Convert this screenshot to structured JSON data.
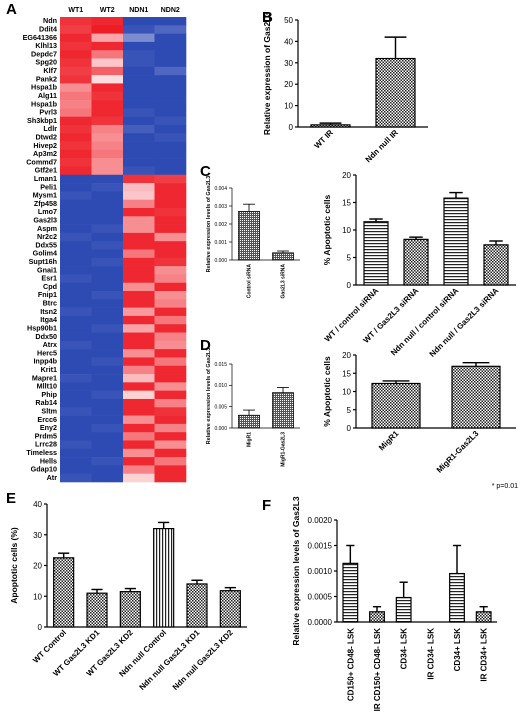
{
  "panels": {
    "A": "A",
    "B": "B",
    "C": "C",
    "D": "D",
    "E": "E",
    "F": "F"
  },
  "chart_data": [
    {
      "panel": "A",
      "type": "heatmap",
      "columns": [
        "WT1",
        "WT2",
        "NDN1",
        "NDN2"
      ],
      "rows": [
        "Ndn",
        "Ddit4",
        "EG641366",
        "Klhl13",
        "Depdc7",
        "Spg20",
        "Klf7",
        "Pank2",
        "Hspa1b",
        "Alg11",
        "Hspa1b",
        "Pvrl3",
        "Sh3kbp1",
        "Ldlr",
        "Dtwd2",
        "Hivep2",
        "Ap3m2",
        "Commd7",
        "Gtf2e1",
        "Lman1",
        "Peli1",
        "Mysm1",
        "Zfp458",
        "Lmo7",
        "Gas2l3",
        "Aspm",
        "Nr2c2",
        "Ddx55",
        "Golim4",
        "Supt16h",
        "Gnai1",
        "Esr1",
        "Cpd",
        "Fnip1",
        "Btrc",
        "Itsn2",
        "Itga4",
        "Hsp90b1",
        "Ddx50",
        "Atrx",
        "Herc5",
        "Inpp4b",
        "Krit1",
        "Mapre1",
        "Mllt10",
        "Phip",
        "Rab14",
        "Sltm",
        "Ercc6",
        "Eny2",
        "Prdm5",
        "Lrrc28",
        "Timeless",
        "Hells",
        "Gdap10",
        "Atr"
      ],
      "values": [
        [
          0.9,
          0.95,
          -0.95,
          -0.95
        ],
        [
          0.85,
          1.0,
          -0.9,
          -0.8
        ],
        [
          0.95,
          0.4,
          -0.6,
          -0.95
        ],
        [
          0.9,
          0.95,
          -0.95,
          -0.95
        ],
        [
          0.95,
          0.6,
          -0.9,
          -0.95
        ],
        [
          0.9,
          0.25,
          -0.9,
          -0.95
        ],
        [
          0.85,
          0.7,
          -0.95,
          -0.8
        ],
        [
          0.9,
          0.15,
          -0.95,
          -0.95
        ],
        [
          0.5,
          0.95,
          -0.95,
          -0.95
        ],
        [
          0.6,
          0.9,
          -0.95,
          -0.95
        ],
        [
          0.55,
          0.95,
          -0.95,
          -0.95
        ],
        [
          0.6,
          0.95,
          -0.9,
          -0.95
        ],
        [
          0.95,
          0.9,
          -0.95,
          -0.9
        ],
        [
          0.9,
          0.55,
          -0.85,
          -0.95
        ],
        [
          0.95,
          0.5,
          -0.95,
          -0.9
        ],
        [
          0.9,
          0.55,
          -0.95,
          -0.95
        ],
        [
          0.95,
          0.6,
          -0.95,
          -0.95
        ],
        [
          0.9,
          0.5,
          -0.95,
          -0.95
        ],
        [
          0.95,
          0.5,
          -0.9,
          -0.95
        ],
        [
          -0.95,
          -0.95,
          0.9,
          0.85
        ],
        [
          -0.95,
          -0.9,
          0.3,
          0.95
        ],
        [
          -0.9,
          -0.95,
          0.25,
          0.95
        ],
        [
          -0.95,
          -0.95,
          0.55,
          0.95
        ],
        [
          -0.95,
          -0.95,
          0.95,
          0.9
        ],
        [
          -0.95,
          -0.95,
          0.5,
          0.95
        ],
        [
          -0.95,
          -0.9,
          0.5,
          0.95
        ],
        [
          -0.9,
          -0.95,
          0.95,
          0.5
        ],
        [
          -0.95,
          -0.9,
          0.95,
          0.95
        ],
        [
          -0.95,
          -0.95,
          0.6,
          0.95
        ],
        [
          -0.95,
          -0.9,
          0.95,
          0.9
        ],
        [
          -0.95,
          -0.95,
          0.95,
          0.5
        ],
        [
          -0.9,
          -0.95,
          0.95,
          0.55
        ],
        [
          -0.95,
          -0.95,
          0.5,
          0.95
        ],
        [
          -0.95,
          -0.9,
          0.95,
          0.5
        ],
        [
          -0.95,
          -0.95,
          0.95,
          0.55
        ],
        [
          -0.9,
          -0.95,
          0.45,
          0.95
        ],
        [
          -0.95,
          -0.95,
          0.95,
          0.6
        ],
        [
          -0.95,
          -0.9,
          0.4,
          0.95
        ],
        [
          -0.95,
          -0.95,
          0.95,
          0.55
        ],
        [
          -0.9,
          -0.95,
          0.95,
          0.5
        ],
        [
          -0.95,
          -0.95,
          0.5,
          0.95
        ],
        [
          -0.95,
          -0.9,
          0.95,
          0.6
        ],
        [
          -0.95,
          -0.95,
          0.55,
          0.95
        ],
        [
          -0.9,
          -0.95,
          0.3,
          0.95
        ],
        [
          -0.95,
          -0.95,
          0.95,
          0.5
        ],
        [
          -0.95,
          -0.9,
          0.2,
          0.95
        ],
        [
          -0.95,
          -0.95,
          0.95,
          0.55
        ],
        [
          -0.9,
          -0.95,
          0.95,
          0.9
        ],
        [
          -0.95,
          -0.95,
          0.5,
          0.95
        ],
        [
          -0.95,
          -0.9,
          0.95,
          0.55
        ],
        [
          -0.95,
          -0.95,
          0.6,
          0.95
        ],
        [
          -0.9,
          -0.95,
          0.95,
          0.5
        ],
        [
          -0.95,
          -0.95,
          0.5,
          0.95
        ],
        [
          -0.95,
          -0.9,
          0.95,
          0.6
        ],
        [
          -0.95,
          -0.95,
          0.55,
          0.95
        ],
        [
          -0.9,
          -0.95,
          0.2,
          0.95
        ]
      ],
      "colors": {
        "high": "#ee1c25",
        "low": "#2341b0",
        "mid": "#ffffff"
      }
    },
    {
      "panel": "B",
      "type": "bar",
      "categories": [
        "WT IR",
        "Ndn null IR"
      ],
      "values": [
        1,
        32
      ],
      "errors": [
        0.8,
        10
      ],
      "ylabel": "Relative expression of Gas2L3",
      "ylim": [
        0,
        50
      ],
      "yticks": [
        0,
        10,
        20,
        30,
        40,
        50
      ]
    },
    {
      "panel": "C-left",
      "type": "bar",
      "categories": [
        "Control siRNA",
        "Gas2L3 siRNA"
      ],
      "values": [
        0.0027,
        0.0004
      ],
      "errors": [
        0.0004,
        0.0001
      ],
      "ylabel": "Relative expression levels of Gas2L3",
      "ylim": [
        0,
        0.004
      ],
      "yticks": [
        "0.000",
        "0.001",
        "0.002",
        "0.003",
        "0.004"
      ]
    },
    {
      "panel": "C-right",
      "type": "bar",
      "categories": [
        "WT /  control siRNA",
        "WT / Gas2L3 siRNA",
        "Ndn null / control siRNA",
        "Ndn null / Gas2L3 siRNA"
      ],
      "values": [
        11.5,
        8.3,
        15.8,
        7.3
      ],
      "errors": [
        0.5,
        0.4,
        1.0,
        0.7
      ],
      "ylabel": "% Apoptotic cells",
      "ylim": [
        0,
        20
      ],
      "yticks": [
        0,
        5,
        10,
        15,
        20
      ]
    },
    {
      "panel": "D-left",
      "type": "bar",
      "categories": [
        "MigR1",
        "MigR1-Gas2L3"
      ],
      "values": [
        0.003,
        0.0083
      ],
      "errors": [
        0.0012,
        0.0012
      ],
      "ylabel": "Relative expression levels of Gas2L3",
      "ylim": [
        0,
        0.015
      ],
      "yticks": [
        "0.000",
        "0.005",
        "0.010",
        "0.015"
      ]
    },
    {
      "panel": "D-right",
      "type": "bar",
      "categories": [
        "MigR1",
        "MigR1-Gas2L3"
      ],
      "values": [
        12.2,
        16.9
      ],
      "errors": [
        0.7,
        1.0
      ],
      "ylabel": "% Apoptotic cells",
      "ylim": [
        0,
        20
      ],
      "yticks": [
        0,
        5,
        10,
        15,
        20
      ],
      "annotation": "* p=0.01"
    },
    {
      "panel": "E",
      "type": "bar",
      "categories": [
        "WT Control",
        "WT Gas2L3 KD1",
        "WT Gas2L3 KD2",
        "Ndn null Control",
        "Ndn null Gas2L3 KD1",
        "Ndn null Gas2L3 KD2"
      ],
      "values": [
        22.5,
        11,
        11.5,
        32,
        14,
        11.8
      ],
      "errors": [
        1.5,
        1.2,
        1.0,
        2.0,
        1.2,
        1.0
      ],
      "ylabel": "Apoptotic cells (%)",
      "ylim": [
        0,
        40
      ],
      "yticks": [
        0,
        10,
        20,
        30,
        40
      ]
    },
    {
      "panel": "F",
      "type": "bar",
      "categories": [
        "CD150+ CD48- LSK",
        "IR CD150+ CD48- LSK",
        "CD34- LSK",
        "IR CD34- LSK",
        "CD34+ LSK",
        "IR CD34+ LSK"
      ],
      "values": [
        0.00115,
        0.0002,
        0.00048,
        0.0,
        0.00095,
        0.0002
      ],
      "errors": [
        0.00035,
        0.0001,
        0.0003,
        0.0,
        0.00055,
        0.0001
      ],
      "ylabel": "Relative expression levels of Gas2L3",
      "ylim": [
        0,
        0.002
      ],
      "yticks": [
        "0.0000",
        "0.0005",
        "0.0010",
        "0.0015",
        "0.0020"
      ]
    }
  ]
}
